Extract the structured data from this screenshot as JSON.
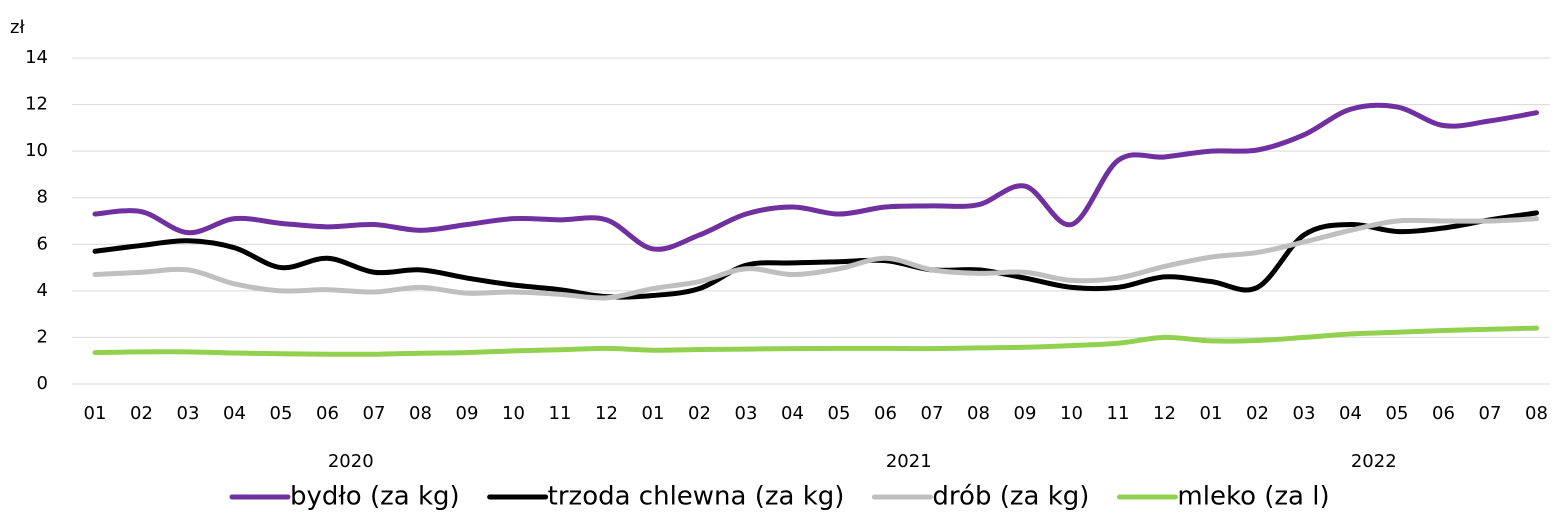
{
  "chart_data": {
    "type": "line",
    "y_unit": "zł",
    "categories": [
      "01",
      "02",
      "03",
      "04",
      "05",
      "06",
      "07",
      "08",
      "09",
      "10",
      "11",
      "12",
      "01",
      "02",
      "03",
      "04",
      "05",
      "06",
      "07",
      "08",
      "09",
      "10",
      "11",
      "12",
      "01",
      "02",
      "03",
      "04",
      "05",
      "06",
      "07",
      "08"
    ],
    "x_groups": [
      "2020",
      "2021",
      "2022"
    ],
    "series": [
      {
        "name": "bydło (za kg)",
        "color": "#7030a0",
        "values": [
          7.3,
          7.4,
          6.5,
          7.1,
          6.9,
          6.75,
          6.85,
          6.6,
          6.85,
          7.1,
          7.05,
          7.05,
          5.8,
          6.4,
          7.3,
          7.6,
          7.3,
          7.6,
          7.65,
          7.7,
          8.5,
          6.85,
          9.6,
          9.75,
          10.0,
          10.05,
          10.7,
          11.8,
          11.9,
          11.1,
          11.3,
          11.65
        ]
      },
      {
        "name": "trzoda chlewna (za kg)",
        "color": "#000000",
        "values": [
          5.7,
          5.95,
          6.15,
          5.85,
          5.0,
          5.4,
          4.8,
          4.9,
          4.55,
          4.25,
          4.05,
          3.75,
          3.8,
          4.1,
          5.1,
          5.2,
          5.25,
          5.3,
          4.9,
          4.9,
          4.55,
          4.15,
          4.15,
          4.6,
          4.4,
          4.15,
          6.4,
          6.85,
          6.55,
          6.7,
          7.05,
          7.35
        ]
      },
      {
        "name": "drób (za kg)",
        "color": "#bfbfbf",
        "values": [
          4.7,
          4.8,
          4.9,
          4.3,
          4.0,
          4.05,
          3.95,
          4.15,
          3.9,
          3.95,
          3.85,
          3.7,
          4.1,
          4.4,
          4.95,
          4.7,
          4.95,
          5.4,
          4.9,
          4.75,
          4.8,
          4.45,
          4.55,
          5.05,
          5.45,
          5.65,
          6.1,
          6.6,
          7.0,
          7.0,
          7.0,
          7.1
        ]
      },
      {
        "name": "mleko (za l)",
        "color": "#92d050",
        "values": [
          1.35,
          1.38,
          1.38,
          1.33,
          1.3,
          1.28,
          1.28,
          1.32,
          1.35,
          1.42,
          1.47,
          1.53,
          1.45,
          1.48,
          1.5,
          1.52,
          1.53,
          1.53,
          1.52,
          1.55,
          1.58,
          1.65,
          1.75,
          2.0,
          1.85,
          1.87,
          2.0,
          2.15,
          2.22,
          2.3,
          2.35,
          2.4
        ]
      }
    ],
    "ylim": [
      0,
      14
    ],
    "yticks": [
      0,
      2,
      4,
      6,
      8,
      10,
      12,
      14
    ],
    "grid": true,
    "legend": "bottom"
  }
}
